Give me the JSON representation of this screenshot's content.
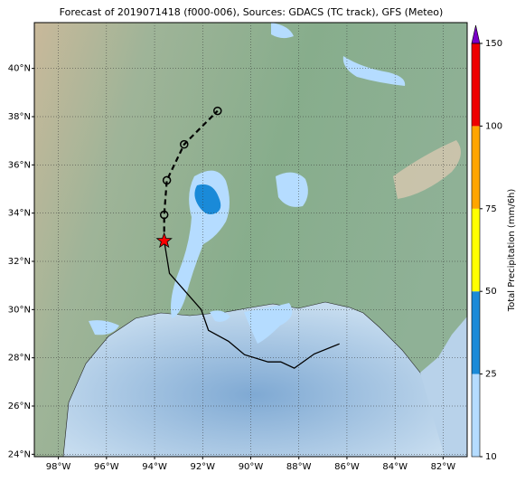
{
  "chart_data": {
    "type": "map",
    "title": "Forecast of 2019071418 (f000-006), Sources: GDACS (TC track), GFS (Meteo)",
    "xlim": [
      -99,
      -81
    ],
    "ylim": [
      23.9,
      41.9
    ],
    "xticks": [
      {
        "value": -98,
        "label": "98°W"
      },
      {
        "value": -96,
        "label": "96°W"
      },
      {
        "value": -94,
        "label": "94°W"
      },
      {
        "value": -92,
        "label": "92°W"
      },
      {
        "value": -90,
        "label": "90°W"
      },
      {
        "value": -88,
        "label": "88°W"
      },
      {
        "value": -86,
        "label": "86°W"
      },
      {
        "value": -84,
        "label": "84°W"
      },
      {
        "value": -82,
        "label": "82°W"
      }
    ],
    "yticks": [
      {
        "value": 24,
        "label": "24°N"
      },
      {
        "value": 26,
        "label": "26°N"
      },
      {
        "value": 28,
        "label": "28°N"
      },
      {
        "value": 30,
        "label": "30°N"
      },
      {
        "value": 32,
        "label": "32°N"
      },
      {
        "value": 34,
        "label": "34°N"
      },
      {
        "value": 36,
        "label": "36°N"
      },
      {
        "value": 38,
        "label": "38°N"
      },
      {
        "value": 40,
        "label": "40°N"
      }
    ],
    "grid": true,
    "series": [
      {
        "name": "past",
        "color": "#000000",
        "style": "solid",
        "x": [
          -93.6,
          -93.38,
          -92.06,
          -91.76,
          -90.93,
          -90.26,
          -89.28,
          -88.75,
          -88.19,
          -87.36,
          -86.31
        ],
        "y": [
          32.85,
          31.5,
          30.0,
          29.14,
          28.69,
          28.13,
          27.83,
          27.83,
          27.57,
          28.16,
          28.58
        ]
      },
      {
        "name": "forecast",
        "color": "#000000",
        "style": "dashed",
        "x": [
          -93.6,
          -93.6,
          -93.49,
          -92.77,
          -91.38
        ],
        "y": [
          32.85,
          33.93,
          35.36,
          36.85,
          38.24
        ]
      }
    ],
    "current_position": {
      "x": -93.6,
      "y": 32.85,
      "color": "#ff0000"
    },
    "colorbar": {
      "label": "Total Precipitation (mm/6h)",
      "ticks": [
        10,
        25,
        50,
        75,
        100,
        150
      ],
      "colors": [
        "#b5dcff",
        "#1a8ad8",
        "#ffff00",
        "#ffa500",
        "#ee0000"
      ],
      "extend_color": "#7a00c8"
    }
  }
}
